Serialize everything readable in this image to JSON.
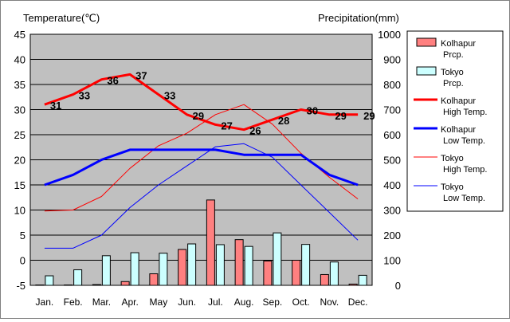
{
  "chart_data": {
    "type": "bar",
    "categories": [
      "Jan.",
      "Feb.",
      "Mar.",
      "Apr.",
      "May",
      "Jun.",
      "Jul.",
      "Aug.",
      "Sep.",
      "Oct.",
      "Nov.",
      "Dec."
    ],
    "left_axis": {
      "title": "Temperature(℃)",
      "min": -5,
      "max": 45,
      "step": 5,
      "ticks": [
        "45",
        "40",
        "35",
        "30",
        "25",
        "20",
        "15",
        "10",
        "5",
        "0",
        "-5"
      ]
    },
    "right_axis": {
      "title": "Precipitation(mm)",
      "min": 0,
      "max": 1000,
      "step": 100,
      "ticks": [
        "1000",
        "900",
        "800",
        "700",
        "600",
        "500",
        "400",
        "300",
        "200",
        "100",
        "0"
      ]
    },
    "grid": true,
    "plot_background": "#c0c0c0",
    "legend_placement": "right",
    "bar_series": [
      {
        "name": "Kolhapur Prcp.",
        "color": "#ff8080",
        "values": [
          1,
          0,
          3,
          15,
          46,
          143,
          340,
          182,
          97,
          100,
          43,
          5
        ]
      },
      {
        "name": "Tokyo Prcp.",
        "color": "#ccffff",
        "values": [
          38,
          62,
          118,
          130,
          128,
          165,
          162,
          155,
          209,
          163,
          93,
          40
        ]
      }
    ],
    "line_series": [
      {
        "name": "Kolhapur High Temp.",
        "color": "#ff0000",
        "width": 3,
        "values": [
          31,
          33,
          36,
          37,
          33,
          29,
          27,
          26,
          28,
          30,
          29,
          29
        ],
        "labels": [
          "31",
          "33",
          "36",
          "37",
          "33",
          "29",
          "27",
          "26",
          "28",
          "30",
          "29",
          "29"
        ]
      },
      {
        "name": "Kolhapur Low Temp.",
        "color": "#0000ff",
        "width": 3,
        "values": [
          15,
          17,
          20,
          22,
          22,
          22,
          22,
          21,
          21,
          21,
          17,
          15
        ]
      },
      {
        "name": "Tokyo High Temp.",
        "color": "#ff0000",
        "width": 1,
        "values": [
          9.8,
          10,
          12.7,
          18.3,
          22.8,
          25.3,
          29,
          31,
          27.1,
          21.3,
          16.5,
          12.2
        ]
      },
      {
        "name": "Tokyo Low Temp.",
        "color": "#0000ff",
        "width": 1,
        "values": [
          2.4,
          2.4,
          5,
          10.5,
          15,
          18.8,
          22.6,
          23.2,
          20.5,
          15,
          9.5,
          4
        ]
      }
    ],
    "legend": [
      {
        "kind": "bar",
        "color": "#ff8080",
        "line1": "Kolhapur",
        "line2": "Prcp."
      },
      {
        "kind": "bar",
        "color": "#ccffff",
        "line1": "Tokyo",
        "line2": "Prcp."
      },
      {
        "kind": "line",
        "color": "#ff0000",
        "width": 3,
        "line1": "Kolhapur",
        "line2": "High Temp."
      },
      {
        "kind": "line",
        "color": "#0000ff",
        "width": 3,
        "line1": "Kolhapur",
        "line2": "Low Temp."
      },
      {
        "kind": "line",
        "color": "#ff0000",
        "width": 1,
        "line1": "Tokyo",
        "line2": "High Temp."
      },
      {
        "kind": "line",
        "color": "#0000ff",
        "width": 1,
        "line1": "Tokyo",
        "line2": "Low Temp."
      }
    ]
  }
}
